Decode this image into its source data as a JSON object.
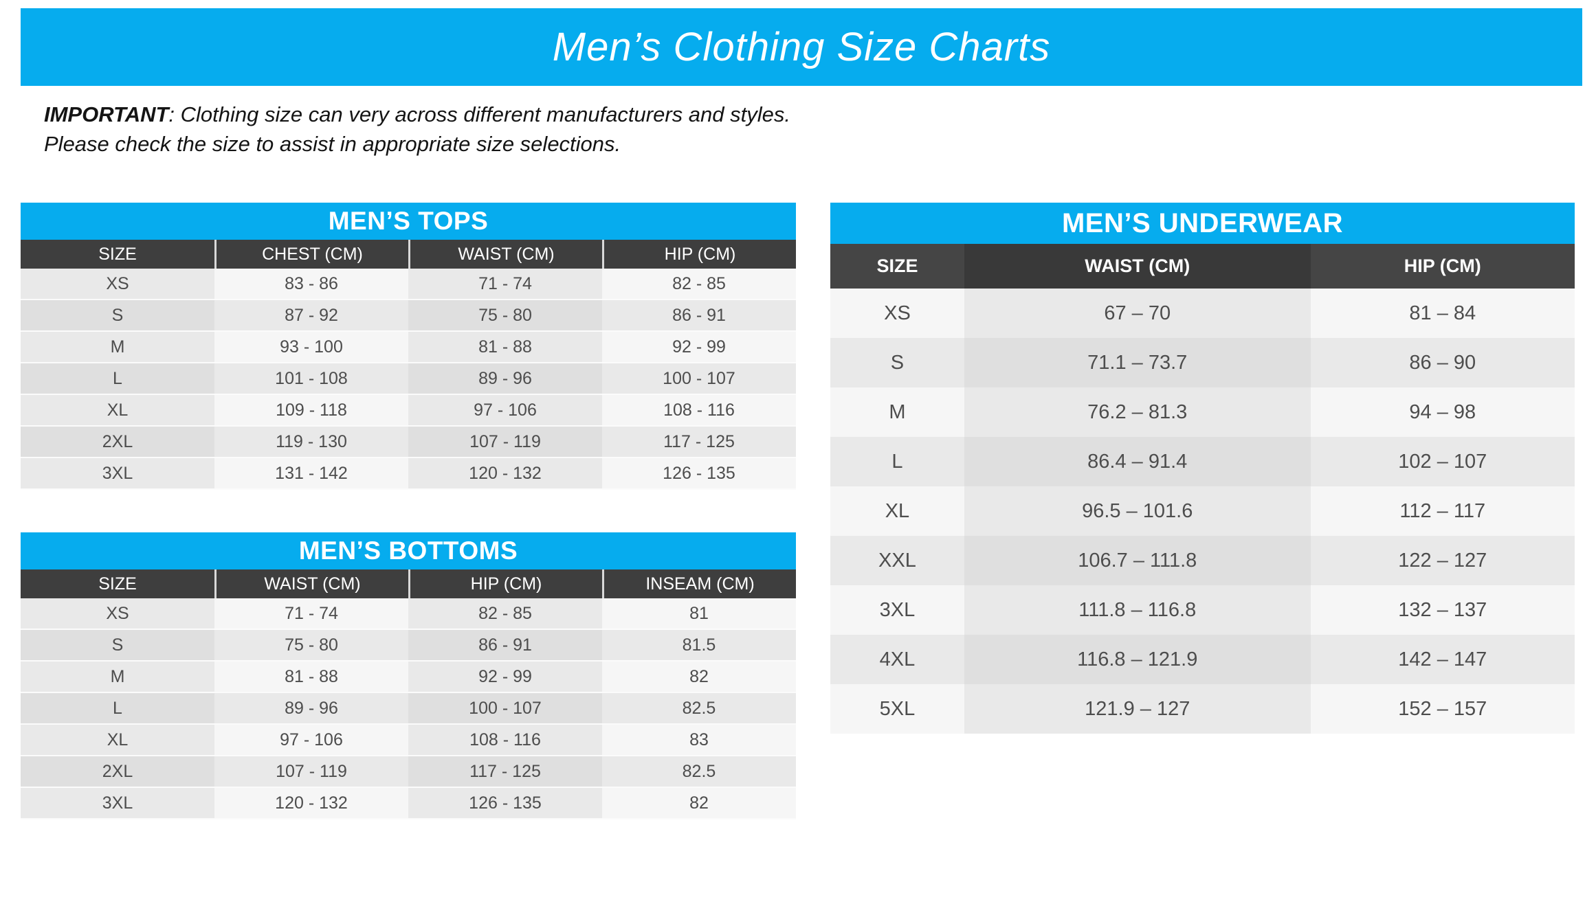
{
  "page": {
    "title": "Men’s Clothing Size Charts",
    "note": {
      "prefix": "IMPORTANT",
      "line1_rest": ": Clothing size can very across different manufacturers and styles.",
      "line2": "Please check the size to assist in appropriate size selections."
    }
  },
  "colors": {
    "accent_blue": "#06ACEE",
    "header_dark": "#3E3E3E",
    "row_light": "#f6f6f6",
    "row_dark": "#e9e9e9"
  },
  "tables": {
    "tops": {
      "title": "MEN’S TOPS",
      "columns": [
        "SIZE",
        "CHEST (CM)",
        "WAIST (CM)",
        "HIP (CM)"
      ],
      "rows": [
        [
          "XS",
          "83 - 86",
          "71 - 74",
          "82 - 85"
        ],
        [
          "S",
          "87 - 92",
          "75 - 80",
          "86 - 91"
        ],
        [
          "M",
          "93 - 100",
          "81 - 88",
          "92 - 99"
        ],
        [
          "L",
          "101 - 108",
          "89 - 96",
          "100 - 107"
        ],
        [
          "XL",
          "109 - 118",
          "97 - 106",
          "108 - 116"
        ],
        [
          "2XL",
          "119 - 130",
          "107 - 119",
          "117 - 125"
        ],
        [
          "3XL",
          "131 - 142",
          "120 - 132",
          "126 - 135"
        ]
      ]
    },
    "bottoms": {
      "title": "MEN’S BOTTOMS",
      "columns": [
        "SIZE",
        "WAIST (CM)",
        "HIP (CM)",
        "INSEAM (CM)"
      ],
      "rows": [
        [
          "XS",
          "71 - 74",
          "82 - 85",
          "81"
        ],
        [
          "S",
          "75 - 80",
          "86 - 91",
          "81.5"
        ],
        [
          "M",
          "81 - 88",
          "92 - 99",
          "82"
        ],
        [
          "L",
          "89 - 96",
          "100 - 107",
          "82.5"
        ],
        [
          "XL",
          "97 - 106",
          "108 - 116",
          "83"
        ],
        [
          "2XL",
          "107 - 119",
          "117 - 125",
          "82.5"
        ],
        [
          "3XL",
          "120 - 132",
          "126 - 135",
          "82"
        ]
      ]
    },
    "underwear": {
      "title": "MEN’S UNDERWEAR",
      "columns": [
        "SIZE",
        "WAIST (CM)",
        "HIP (CM)"
      ],
      "rows": [
        [
          "XS",
          "67 – 70",
          "81 – 84"
        ],
        [
          "S",
          "71.1 – 73.7",
          "86 – 90"
        ],
        [
          "M",
          "76.2 – 81.3",
          "94 – 98"
        ],
        [
          "L",
          "86.4 – 91.4",
          "102 – 107"
        ],
        [
          "XL",
          "96.5 – 101.6",
          "112 – 117"
        ],
        [
          "XXL",
          "106.7 – 111.8",
          "122 – 127"
        ],
        [
          "3XL",
          "111.8 – 116.8",
          "132 – 137"
        ],
        [
          "4XL",
          "116.8 – 121.9",
          "142 – 147"
        ],
        [
          "5XL",
          "121.9 – 127",
          "152 – 157"
        ]
      ]
    }
  }
}
